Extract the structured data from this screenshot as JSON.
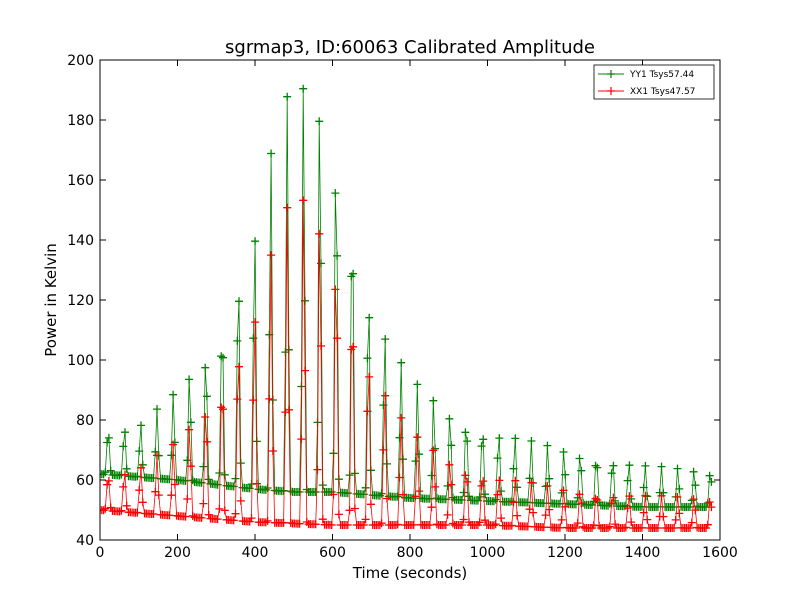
{
  "chart_data": {
    "type": "line",
    "title": "sgrmap3, ID:60063 Calibrated Amplitude",
    "xlabel": "Time (seconds)",
    "ylabel": "Power in Kelvin",
    "xlim": [
      0,
      1600
    ],
    "ylim": [
      40,
      200
    ],
    "xticks": [
      "0",
      "200",
      "400",
      "600",
      "800",
      "1000",
      "1200",
      "1400",
      "1600"
    ],
    "yticks": [
      "40",
      "60",
      "80",
      "100",
      "120",
      "140",
      "160",
      "180",
      "200"
    ],
    "grid": false,
    "legend_position": "top-right",
    "marker": "+",
    "x_start": 0,
    "x_end": 1580,
    "x_step": 4.6,
    "oscillation_period_s": 42,
    "series": [
      {
        "name": "YY1 Tsys57.44",
        "color": "#008000",
        "trough_anchors": [
          [
            0,
            62
          ],
          [
            200,
            60
          ],
          [
            400,
            57
          ],
          [
            500,
            56
          ],
          [
            600,
            56
          ],
          [
            800,
            54
          ],
          [
            1000,
            53
          ],
          [
            1200,
            52
          ],
          [
            1400,
            51
          ],
          [
            1580,
            51
          ]
        ],
        "peak_anchors": [
          [
            0,
            76
          ],
          [
            100,
            78
          ],
          [
            200,
            90
          ],
          [
            300,
            107
          ],
          [
            400,
            145
          ],
          [
            460,
            182
          ],
          [
            500,
            192
          ],
          [
            540,
            193
          ],
          [
            580,
            185
          ],
          [
            640,
            155
          ],
          [
            700,
            118
          ],
          [
            800,
            94
          ],
          [
            900,
            83
          ],
          [
            1000,
            77
          ],
          [
            1200,
            70
          ],
          [
            1400,
            65
          ],
          [
            1580,
            63
          ]
        ]
      },
      {
        "name": "XX1 Tsys47.57",
        "color": "#ff0000",
        "trough_anchors": [
          [
            0,
            50
          ],
          [
            200,
            48
          ],
          [
            400,
            46
          ],
          [
            600,
            45
          ],
          [
            800,
            45
          ],
          [
            1000,
            45
          ],
          [
            1200,
            44
          ],
          [
            1400,
            44
          ],
          [
            1580,
            44
          ]
        ],
        "peak_anchors": [
          [
            0,
            61
          ],
          [
            100,
            64
          ],
          [
            200,
            73
          ],
          [
            300,
            90
          ],
          [
            400,
            117
          ],
          [
            460,
            145
          ],
          [
            500,
            155
          ],
          [
            540,
            155
          ],
          [
            580,
            145
          ],
          [
            640,
            125
          ],
          [
            700,
            98
          ],
          [
            800,
            76
          ],
          [
            900,
            67
          ],
          [
            1000,
            62
          ],
          [
            1200,
            57
          ],
          [
            1400,
            55
          ],
          [
            1580,
            54
          ]
        ]
      }
    ]
  }
}
